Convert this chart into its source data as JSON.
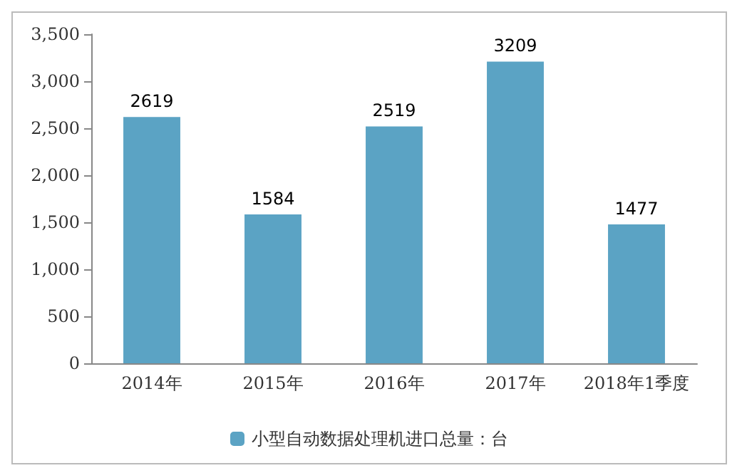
{
  "chart_data": {
    "type": "bar",
    "categories": [
      "2014年",
      "2015年",
      "2016年",
      "2017年",
      "2018年1季度"
    ],
    "series": [
      {
        "name": "小型自动数据处理机进口总量：台",
        "color": "#5ba3c4",
        "values": [
          2619,
          1584,
          2519,
          3209,
          1477
        ]
      }
    ],
    "ylim": [
      0,
      3500
    ],
    "yticks": [
      {
        "value": 0,
        "label": "0"
      },
      {
        "value": 500,
        "label": "500"
      },
      {
        "value": 1000,
        "label": "1,000"
      },
      {
        "value": 1500,
        "label": "1,500"
      },
      {
        "value": 2000,
        "label": "2,000"
      },
      {
        "value": 2500,
        "label": "2,500"
      },
      {
        "value": 3000,
        "label": "3,000"
      },
      {
        "value": 3500,
        "label": "3,500"
      }
    ],
    "data_labels": true,
    "legend": "bottom",
    "grid": false
  }
}
